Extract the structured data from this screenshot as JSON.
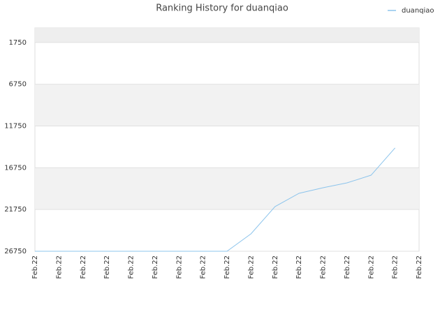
{
  "chart_data": {
    "type": "line",
    "title": "Ranking History for duanqiao",
    "categories": [
      "Feb.22",
      "Feb.22",
      "Feb.22",
      "Feb.22",
      "Feb.22",
      "Feb.22",
      "Feb.22",
      "Feb.22",
      "Feb.22",
      "Feb.22",
      "Feb.22",
      "Feb.22",
      "Feb.22",
      "Feb.22",
      "Feb.22",
      "Feb.22",
      "Feb.22"
    ],
    "series": [
      {
        "name": "duanqiao",
        "color": "#8cc4ec",
        "values": [
          26750,
          26750,
          26750,
          26750,
          26750,
          26750,
          26750,
          26750,
          26750,
          24660,
          21400,
          19810,
          19140,
          18560,
          17640,
          14370,
          null
        ]
      }
    ],
    "ylim": [
      26750,
      0
    ],
    "yticks": [
      1750,
      6750,
      11750,
      16750,
      21750,
      26750
    ],
    "grid": true,
    "legend": "top-right"
  }
}
